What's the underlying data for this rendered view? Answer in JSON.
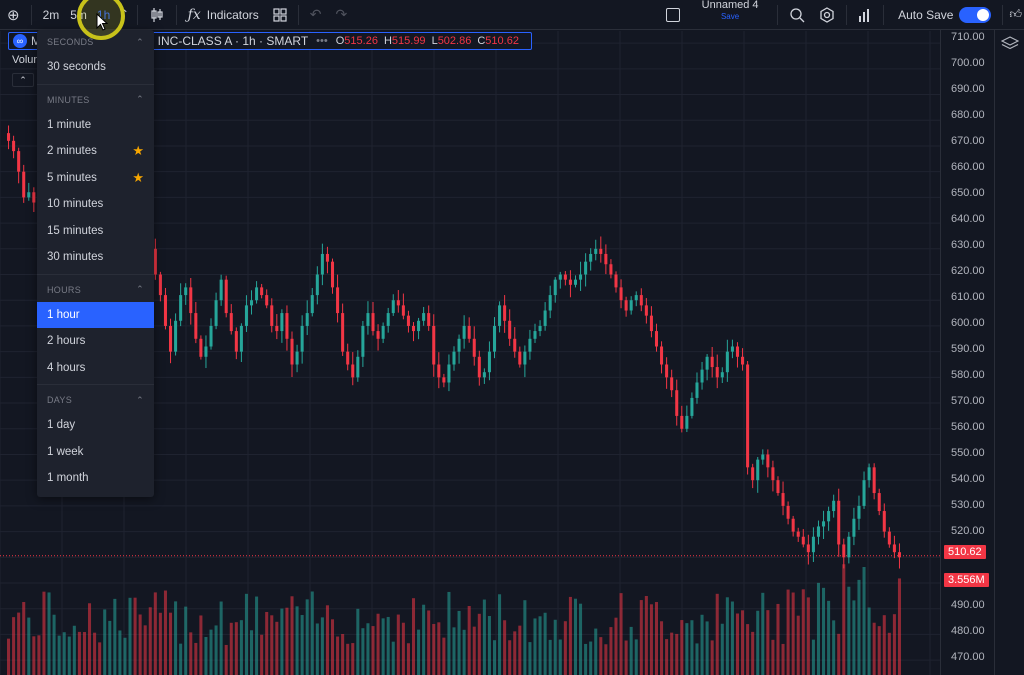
{
  "toolbar": {
    "intervals": [
      "2m",
      "5m",
      "1h"
    ],
    "indicators_label": "Indicators",
    "layout_name": "Unnamed 4",
    "layout_save": "Save",
    "autosave_label": "Auto Save"
  },
  "symbol": {
    "logo_text": "∞",
    "title": "M                          RMS INC-CLASS A · 1h · SMART",
    "dots": "•••",
    "ohlc": [
      {
        "label": "O",
        "value": "515.26"
      },
      {
        "label": "H",
        "value": "515.99"
      },
      {
        "label": "L",
        "value": "502.86"
      },
      {
        "label": "C",
        "value": "510.62"
      }
    ],
    "volume_label": "Volun"
  },
  "price_scale": {
    "ticks": [
      "710.00",
      "700.00",
      "690.00",
      "680.00",
      "670.00",
      "660.00",
      "650.00",
      "640.00",
      "630.00",
      "620.00",
      "610.00",
      "600.00",
      "590.00",
      "580.00",
      "570.00",
      "560.00",
      "550.00",
      "540.00",
      "530.00",
      "520.00",
      "490.00",
      "480.00",
      "470.00"
    ],
    "last_price": "510.62",
    "last_volume": "3.556M"
  },
  "interval_menu": {
    "sections": [
      {
        "title": "SECONDS",
        "items": [
          {
            "label": "30 seconds",
            "fav": false,
            "selected": false
          }
        ]
      },
      {
        "title": "MINUTES",
        "items": [
          {
            "label": "1 minute",
            "fav": false,
            "selected": false
          },
          {
            "label": "2 minutes",
            "fav": true,
            "selected": false
          },
          {
            "label": "5 minutes",
            "fav": true,
            "selected": false
          },
          {
            "label": "10 minutes",
            "fav": false,
            "selected": false
          },
          {
            "label": "15 minutes",
            "fav": false,
            "selected": false
          },
          {
            "label": "30 minutes",
            "fav": false,
            "selected": false
          }
        ]
      },
      {
        "title": "HOURS",
        "items": [
          {
            "label": "1 hour",
            "fav": false,
            "selected": true
          },
          {
            "label": "2 hours",
            "fav": false,
            "selected": false
          },
          {
            "label": "4 hours",
            "fav": false,
            "selected": false
          }
        ]
      },
      {
        "title": "DAYS",
        "items": [
          {
            "label": "1 day",
            "fav": false,
            "selected": false
          },
          {
            "label": "1 week",
            "fav": false,
            "selected": false
          },
          {
            "label": "1 month",
            "fav": false,
            "selected": false
          }
        ]
      }
    ]
  },
  "colors": {
    "up": "#26a69a",
    "down": "#f23645",
    "accent": "#2962ff",
    "favorite": "#f7a600"
  },
  "chart_data": {
    "type": "candlestick",
    "interval": "1h",
    "ylim": [
      465,
      712
    ],
    "last_price": 510.62,
    "closes": [
      672,
      668,
      660,
      650,
      652,
      648,
      645,
      644,
      648,
      650,
      655,
      658,
      660,
      662,
      655,
      650,
      640,
      635,
      628,
      632,
      638,
      645,
      650,
      655,
      658,
      654,
      650,
      640,
      630,
      620,
      612,
      600,
      590,
      602,
      612,
      615,
      605,
      595,
      588,
      592,
      600,
      610,
      618,
      605,
      598,
      590,
      600,
      608,
      610,
      615,
      612,
      608,
      600,
      598,
      605,
      595,
      585,
      590,
      600,
      605,
      612,
      620,
      628,
      625,
      615,
      605,
      590,
      585,
      580,
      588,
      600,
      605,
      598,
      595,
      600,
      605,
      610,
      608,
      604,
      600,
      598,
      602,
      605,
      600,
      585,
      580,
      578,
      585,
      590,
      595,
      600,
      595,
      588,
      580,
      582,
      590,
      600,
      608,
      602,
      595,
      590,
      585,
      590,
      595,
      598,
      600,
      606,
      612,
      618,
      620,
      618,
      616,
      618,
      620,
      625,
      628,
      630,
      628,
      624,
      620,
      615,
      610,
      606,
      610,
      612,
      608,
      604,
      598,
      592,
      585,
      580,
      575,
      565,
      560,
      565,
      572,
      578,
      583,
      588,
      584,
      580,
      582,
      590,
      592,
      588,
      585,
      545,
      540,
      548,
      550,
      545,
      540,
      535,
      530,
      525,
      520,
      518,
      515,
      512,
      518,
      522,
      524,
      528,
      532,
      515,
      510,
      518,
      525,
      530,
      540,
      545,
      535,
      528,
      520,
      515,
      512,
      510
    ]
  }
}
